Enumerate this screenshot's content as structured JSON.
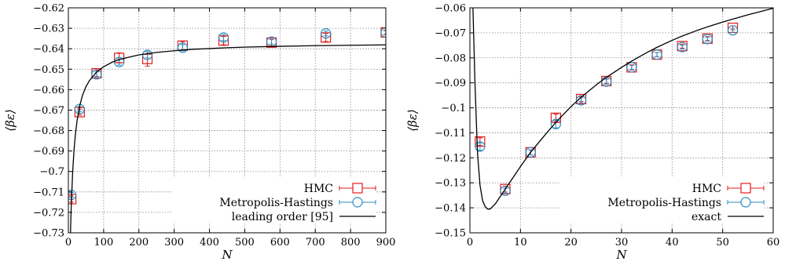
{
  "chart_data": [
    {
      "type": "scatter",
      "xlabel": "N",
      "ylabel": "⟨βε⟩",
      "xlim": [
        0,
        900
      ],
      "ylim": [
        -0.73,
        -0.62
      ],
      "xticks": [
        0,
        100,
        200,
        300,
        400,
        500,
        600,
        700,
        800,
        900
      ],
      "xtick_labels": [
        "0",
        "100",
        "200",
        "300",
        "400",
        "500",
        "600",
        "700",
        "800",
        "900"
      ],
      "yticks": [
        -0.73,
        -0.72,
        -0.71,
        -0.7,
        -0.69,
        -0.68,
        -0.67,
        -0.66,
        -0.65,
        -0.64,
        -0.63,
        -0.62
      ],
      "ytick_labels": [
        "−0.73",
        "−0.72",
        "−0.71",
        "−0.7",
        "−0.69",
        "−0.68",
        "−0.67",
        "−0.66",
        "−0.65",
        "−0.64",
        "−0.63",
        "−0.62"
      ],
      "grid": true,
      "legend_position": "bottom-right",
      "series": [
        {
          "name": "HMC",
          "marker": "square",
          "color": "#e41a1c",
          "x": [
            8,
            32,
            80,
            144,
            224,
            324,
            440,
            576,
            730,
            900
          ],
          "y": [
            -0.7135,
            -0.671,
            -0.652,
            -0.6445,
            -0.645,
            -0.6385,
            -0.636,
            -0.637,
            -0.6345,
            -0.632
          ],
          "err": [
            0.0015,
            0.0015,
            0.0015,
            0.0025,
            0.0035,
            0.002,
            0.002,
            0.0015,
            0.002,
            0.001
          ]
        },
        {
          "name": "Metropolis-Hastings",
          "marker": "circle",
          "color": "#2b8cbe",
          "x": [
            8,
            32,
            80,
            144,
            224,
            324,
            440,
            576,
            730,
            900
          ],
          "y": [
            -0.7115,
            -0.6695,
            -0.6525,
            -0.6465,
            -0.643,
            -0.6395,
            -0.6345,
            -0.6365,
            -0.6325,
            -0.632
          ],
          "err": [
            0.0012,
            0.0012,
            0.0012,
            0.0015,
            0.0015,
            0.0015,
            0.0015,
            0.0012,
            0.0012,
            0.0008
          ]
        },
        {
          "name": "leading order [95]",
          "type": "line",
          "color": "#000000",
          "x": [
            5,
            8,
            12,
            16,
            20,
            25,
            32,
            40,
            50,
            60,
            80,
            100,
            125,
            150,
            200,
            250,
            300,
            350,
            400,
            450,
            500,
            600,
            700,
            800,
            900
          ],
          "y": [
            -0.7363,
            -0.7177,
            -0.7008,
            -0.6897,
            -0.6818,
            -0.6748,
            -0.668,
            -0.6628,
            -0.6585,
            -0.6555,
            -0.6514,
            -0.6488,
            -0.6465,
            -0.645,
            -0.643,
            -0.6418,
            -0.641,
            -0.6403,
            -0.6399,
            -0.6395,
            -0.6392,
            -0.6388,
            -0.6385,
            -0.6383,
            -0.6381
          ]
        }
      ]
    },
    {
      "type": "scatter",
      "xlabel": "N",
      "ylabel": "⟨βε⟩",
      "xlim": [
        0,
        60
      ],
      "ylim": [
        -0.15,
        -0.06
      ],
      "xticks": [
        0,
        10,
        20,
        30,
        40,
        50,
        60
      ],
      "xtick_labels": [
        "0",
        "10",
        "20",
        "30",
        "40",
        "50",
        "60"
      ],
      "yticks": [
        -0.15,
        -0.14,
        -0.13,
        -0.12,
        -0.11,
        -0.1,
        -0.09,
        -0.08,
        -0.07,
        -0.06
      ],
      "ytick_labels": [
        "−0.15",
        "−0.14",
        "−0.13",
        "−0.12",
        "−0.11",
        "−0.1",
        "−0.09",
        "−0.08",
        "−0.07",
        "−0.06"
      ],
      "grid": true,
      "legend_position": "bottom-right",
      "series": [
        {
          "name": "HMC",
          "marker": "square",
          "color": "#e41a1c",
          "x": [
            2,
            7,
            12,
            17,
            22,
            27,
            32,
            37,
            42,
            47,
            52
          ],
          "y": [
            -0.1135,
            -0.1325,
            -0.1178,
            -0.104,
            -0.0965,
            -0.0893,
            -0.0838,
            -0.0787,
            -0.0753,
            -0.0723,
            -0.068
          ],
          "err": [
            0.0015,
            0.0012,
            0.001,
            0.0015,
            0.001,
            0.001,
            0.001,
            0.0008,
            0.0008,
            0.0008,
            0.0008
          ]
        },
        {
          "name": "Metropolis-Hastings",
          "marker": "circle",
          "color": "#2b8cbe",
          "x": [
            2,
            7,
            12,
            17,
            22,
            27,
            32,
            37,
            42,
            47,
            52
          ],
          "y": [
            -0.1155,
            -0.1332,
            -0.1178,
            -0.1065,
            -0.097,
            -0.0895,
            -0.0838,
            -0.0787,
            -0.0757,
            -0.0725,
            -0.069
          ],
          "err": [
            0.0015,
            0.001,
            0.001,
            0.0015,
            0.001,
            0.001,
            0.0008,
            0.0008,
            0.0008,
            0.0008,
            0.0008
          ]
        },
        {
          "name": "exact",
          "type": "line",
          "color": "#000000",
          "x": [
            0.6,
            1.0,
            1.5,
            2,
            2.5,
            3,
            3.5,
            4,
            5,
            6,
            7,
            8,
            10,
            12,
            15,
            17,
            20,
            22,
            25,
            27,
            30,
            32,
            35,
            37,
            40,
            42,
            45,
            47,
            50,
            52,
            55,
            58,
            60
          ],
          "y": [
            -0.06,
            -0.09,
            -0.118,
            -0.131,
            -0.137,
            -0.1395,
            -0.1405,
            -0.1405,
            -0.1385,
            -0.1355,
            -0.1325,
            -0.1295,
            -0.1235,
            -0.1178,
            -0.1105,
            -0.1058,
            -0.0995,
            -0.0958,
            -0.0908,
            -0.0878,
            -0.0838,
            -0.0813,
            -0.0779,
            -0.0758,
            -0.073,
            -0.0713,
            -0.069,
            -0.0676,
            -0.0657,
            -0.0645,
            -0.0628,
            -0.0612,
            -0.0602
          ]
        }
      ]
    }
  ]
}
